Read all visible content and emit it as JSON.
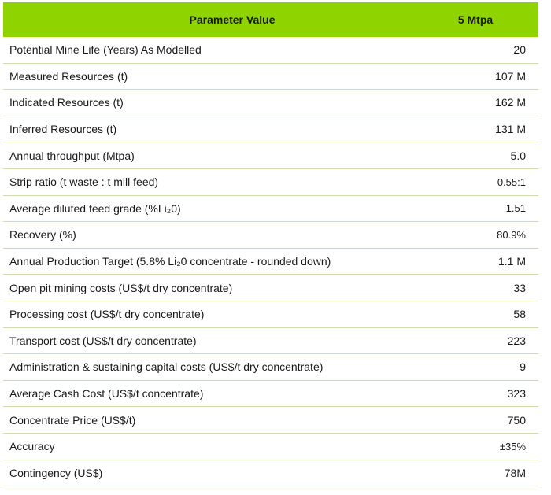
{
  "header": {
    "parameter_label": "Parameter Value",
    "value_label": "5 Mtpa"
  },
  "rows": [
    {
      "parameter": "Potential Mine Life (Years) As Modelled",
      "value": "20"
    },
    {
      "parameter": "Measured Resources (t)",
      "value": "107 M"
    },
    {
      "parameter": "Indicated Resources (t)",
      "value": "162 M"
    },
    {
      "parameter": "Inferred Resources (t)",
      "value": "131 M"
    },
    {
      "parameter": "Annual throughput (Mtpa)",
      "value": "5.0"
    },
    {
      "parameter": "Strip ratio (t waste : t mill feed)",
      "value": "0.55:1"
    },
    {
      "parameter": "Average diluted feed grade (%Li₂0)",
      "value": "1.51"
    },
    {
      "parameter": "Recovery (%)",
      "value": "80.9%"
    },
    {
      "parameter": "Annual Production Target (5.8% Li₂0 concentrate - rounded down)",
      "value": "1.1 M"
    },
    {
      "parameter": "Open pit mining costs (US$/t dry concentrate)",
      "value": "33"
    },
    {
      "parameter": "Processing cost (US$/t dry concentrate)",
      "value": "58"
    },
    {
      "parameter": "Transport cost (US$/t dry concentrate)",
      "value": "223"
    },
    {
      "parameter": "Administration & sustaining capital costs (US$/t dry concentrate)",
      "value": "9"
    },
    {
      "parameter": "Average Cash Cost (US$/t concentrate)",
      "value": "323"
    },
    {
      "parameter": "Concentrate Price (US$/t)",
      "value": "750"
    },
    {
      "parameter": "Accuracy",
      "value": "±35%"
    },
    {
      "parameter": "Contingency (US$)",
      "value": "78M"
    }
  ],
  "colors": {
    "header_bg": "#8fd400",
    "row_divider": "#cfdcae"
  }
}
